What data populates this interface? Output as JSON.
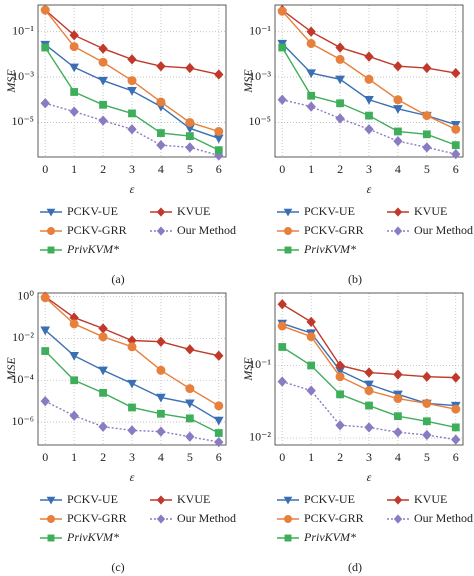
{
  "chart_data": [
    {
      "type": "line",
      "panel_label": "(a)",
      "x_label": "ε",
      "y_label": "MSE",
      "log_y": true,
      "grid": true,
      "x": [
        0,
        1,
        2,
        3,
        4,
        5,
        6
      ],
      "xlim": [
        -0.25,
        6.25
      ],
      "xticks": [
        0,
        1,
        2,
        3,
        4,
        5,
        6
      ],
      "ylim": [
        3e-07,
        1.5
      ],
      "yticks": [
        {
          "value": 0.1,
          "label": "10⁻¹"
        },
        {
          "value": 0.001,
          "label": "10⁻³"
        },
        {
          "value": 1e-05,
          "label": "10⁻⁵"
        }
      ],
      "series": [
        {
          "name": "PCKV-UE",
          "color": "#3b6fb4",
          "marker": "triangle-down",
          "dash": "solid",
          "values": [
            0.027,
            0.0027,
            0.0007,
            0.00025,
            5e-05,
            5.5e-06,
            2e-06
          ]
        },
        {
          "name": "KVUE",
          "color": "#c0392b",
          "marker": "diamond",
          "dash": "solid",
          "values": [
            0.9,
            0.07,
            0.018,
            0.006,
            0.003,
            0.0025,
            0.0013
          ]
        },
        {
          "name": "PCKV-GRR",
          "color": "#e6803c",
          "marker": "circle",
          "dash": "solid",
          "values": [
            0.9,
            0.022,
            0.0045,
            0.0007,
            8e-05,
            1e-05,
            4e-06
          ]
        },
        {
          "name": "Our Method",
          "color": "#8b7bc2",
          "marker": "diamond",
          "dash": "dotted",
          "values": [
            7e-05,
            3e-05,
            1.2e-05,
            5e-06,
            1e-06,
            8e-07,
            3.5e-07
          ]
        },
        {
          "name": "PrivKVM*",
          "color": "#3fae5b",
          "marker": "square",
          "dash": "solid",
          "font_style": "italic",
          "values": [
            0.02,
            0.00022,
            6e-05,
            2.5e-05,
            3.4e-06,
            2.5e-06,
            6e-07
          ]
        }
      ]
    },
    {
      "type": "line",
      "panel_label": "(b)",
      "x_label": "ε",
      "y_label": "MSE",
      "log_y": true,
      "grid": true,
      "x": [
        0,
        1,
        2,
        3,
        4,
        5,
        6
      ],
      "xlim": [
        -0.25,
        6.25
      ],
      "xticks": [
        0,
        1,
        2,
        3,
        4,
        5,
        6
      ],
      "ylim": [
        3e-07,
        1.5
      ],
      "yticks": [
        {
          "value": 0.1,
          "label": "10⁻¹"
        },
        {
          "value": 0.001,
          "label": "10⁻³"
        },
        {
          "value": 1e-05,
          "label": "10⁻⁵"
        }
      ],
      "series": [
        {
          "name": "PCKV-UE",
          "color": "#3b6fb4",
          "marker": "triangle-down",
          "dash": "solid",
          "values": [
            0.03,
            0.0015,
            0.0008,
            0.0001,
            4e-05,
            2e-05,
            8e-06
          ]
        },
        {
          "name": "KVUE",
          "color": "#c0392b",
          "marker": "diamond",
          "dash": "solid",
          "values": [
            0.9,
            0.1,
            0.02,
            0.008,
            0.003,
            0.0025,
            0.0015
          ]
        },
        {
          "name": "PCKV-GRR",
          "color": "#e6803c",
          "marker": "circle",
          "dash": "solid",
          "values": [
            0.8,
            0.03,
            0.006,
            0.0008,
            0.0001,
            2e-05,
            5e-06
          ]
        },
        {
          "name": "Our Method",
          "color": "#8b7bc2",
          "marker": "diamond",
          "dash": "dotted",
          "values": [
            0.0001,
            5e-05,
            1.5e-05,
            5e-06,
            1.5e-06,
            8e-07,
            4e-07
          ]
        },
        {
          "name": "PrivKVM*",
          "color": "#3fae5b",
          "marker": "square",
          "dash": "solid",
          "font_style": "italic",
          "values": [
            0.02,
            0.00015,
            7e-05,
            2e-05,
            4e-06,
            3e-06,
            1e-06
          ]
        }
      ]
    },
    {
      "type": "line",
      "panel_label": "(c)",
      "x_label": "ε",
      "y_label": "MSE",
      "log_y": true,
      "grid": true,
      "x": [
        0,
        1,
        2,
        3,
        4,
        5,
        6
      ],
      "xlim": [
        -0.25,
        6.25
      ],
      "xticks": [
        0,
        1,
        2,
        3,
        4,
        5,
        6
      ],
      "ylim": [
        8e-08,
        1.5
      ],
      "yticks": [
        {
          "value": 1,
          "label": "10⁰"
        },
        {
          "value": 0.01,
          "label": "10⁻²"
        },
        {
          "value": 0.0001,
          "label": "10⁻⁴"
        },
        {
          "value": 1e-06,
          "label": "10⁻⁶"
        }
      ],
      "series": [
        {
          "name": "PCKV-UE",
          "color": "#3b6fb4",
          "marker": "triangle-down",
          "dash": "solid",
          "values": [
            0.025,
            0.0015,
            0.0003,
            7e-05,
            1.5e-05,
            8e-06,
            1.2e-06
          ]
        },
        {
          "name": "KVUE",
          "color": "#c0392b",
          "marker": "diamond",
          "dash": "solid",
          "values": [
            1,
            0.1,
            0.03,
            0.008,
            0.007,
            0.003,
            0.0015
          ]
        },
        {
          "name": "PCKV-GRR",
          "color": "#e6803c",
          "marker": "circle",
          "dash": "solid",
          "values": [
            0.9,
            0.05,
            0.012,
            0.004,
            0.0003,
            4e-05,
            6e-06
          ]
        },
        {
          "name": "Our Method",
          "color": "#8b7bc2",
          "marker": "diamond",
          "dash": "dotted",
          "values": [
            1e-05,
            2e-06,
            6e-07,
            4e-07,
            3.5e-07,
            2e-07,
            1.1e-07
          ]
        },
        {
          "name": "PrivKVM*",
          "color": "#3fae5b",
          "marker": "square",
          "dash": "solid",
          "font_style": "italic",
          "values": [
            0.0025,
            0.0001,
            2.5e-05,
            5e-06,
            2.5e-06,
            1.5e-06,
            3e-07
          ]
        }
      ]
    },
    {
      "type": "line",
      "panel_label": "(d)",
      "x_label": "ε",
      "y_label": "MSE",
      "log_y": true,
      "grid": true,
      "x": [
        0,
        1,
        2,
        3,
        4,
        5,
        6
      ],
      "xlim": [
        -0.25,
        6.25
      ],
      "xticks": [
        0,
        1,
        2,
        3,
        4,
        5,
        6
      ],
      "ylim": [
        0.008,
        1
      ],
      "yticks": [
        {
          "value": 0.1,
          "label": "10⁻¹"
        },
        {
          "value": 0.01,
          "label": "10⁻²"
        }
      ],
      "series": [
        {
          "name": "PCKV-UE",
          "color": "#3b6fb4",
          "marker": "triangle-down",
          "dash": "solid",
          "values": [
            0.38,
            0.28,
            0.085,
            0.055,
            0.04,
            0.03,
            0.028
          ]
        },
        {
          "name": "KVUE",
          "color": "#c0392b",
          "marker": "diamond",
          "dash": "solid",
          "values": [
            0.7,
            0.4,
            0.1,
            0.08,
            0.075,
            0.07,
            0.068
          ]
        },
        {
          "name": "PCKV-GRR",
          "color": "#e6803c",
          "marker": "circle",
          "dash": "solid",
          "values": [
            0.35,
            0.25,
            0.07,
            0.045,
            0.035,
            0.03,
            0.025
          ]
        },
        {
          "name": "Our Method",
          "color": "#8b7bc2",
          "marker": "diamond",
          "dash": "dotted",
          "values": [
            0.06,
            0.045,
            0.015,
            0.014,
            0.012,
            0.011,
            0.0095
          ]
        },
        {
          "name": "PrivKVM*",
          "color": "#3fae5b",
          "marker": "square",
          "dash": "solid",
          "font_style": "italic",
          "values": [
            0.18,
            0.1,
            0.04,
            0.028,
            0.02,
            0.017,
            0.014
          ]
        }
      ]
    }
  ]
}
